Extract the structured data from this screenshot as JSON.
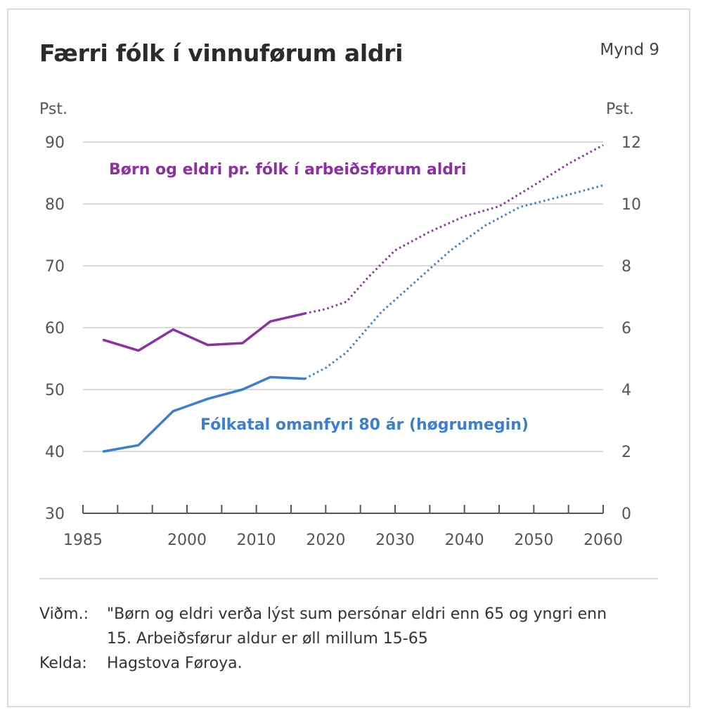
{
  "figure_label": "Mynd 9",
  "notes": {
    "note_label": "Viðm.:",
    "note_text": "\"Børn og eldri verða lýst sum persónar eldri enn 65 og yngri enn 15. Arbeiðsførur aldur er øll millum 15-65",
    "source_label": "Kelda:",
    "source_text": "Hagstova Føroya."
  },
  "chart_data": {
    "type": "line",
    "title": "Færri fólk í vinnuførum aldri",
    "left_axis": {
      "unit_label": "Pst.",
      "ylim": [
        30,
        90
      ],
      "ticks": [
        "90",
        "80",
        "70",
        "60",
        "50",
        "40",
        "30"
      ]
    },
    "right_axis": {
      "unit_label": "Pst.",
      "ylim": [
        0,
        12
      ],
      "ticks": [
        "12",
        "10",
        "8",
        "6",
        "4",
        "2",
        "0"
      ]
    },
    "x_ticks": [
      "1985",
      "2000",
      "2010",
      "2020",
      "2030",
      "2040",
      "2050",
      "2060"
    ],
    "x_range": [
      1985,
      2060
    ],
    "grid": true,
    "series": [
      {
        "name": "Børn og eldri pr. fólk í arbeiðsførum aldri",
        "axis": "left",
        "color": "#8e2fa3",
        "x": [
          1988,
          1993,
          1998,
          2003,
          2008,
          2012,
          2017,
          2020,
          2023,
          2026,
          2030,
          2035,
          2040,
          2045,
          2050,
          2055,
          2060
        ],
        "y": [
          58,
          56.3,
          59.7,
          57.2,
          57.5,
          61,
          62.3,
          63,
          64.2,
          68,
          72.5,
          75.5,
          78,
          79.6,
          83,
          86.5,
          89.5
        ],
        "solid_until": 2017
      },
      {
        "name": "Fólkatal omanfyri 80 ár (høgrumegin)",
        "axis": "right",
        "color": "#3a80d2",
        "x": [
          1988,
          1993,
          1998,
          2003,
          2008,
          2012,
          2017,
          2020,
          2023,
          2028,
          2033,
          2038,
          2043,
          2048,
          2055,
          2060
        ],
        "y": [
          2.0,
          2.2,
          3.3,
          3.7,
          4.0,
          4.4,
          4.35,
          4.7,
          5.2,
          6.5,
          7.5,
          8.5,
          9.3,
          9.9,
          10.3,
          10.6
        ],
        "solid_until": 2017
      }
    ]
  }
}
